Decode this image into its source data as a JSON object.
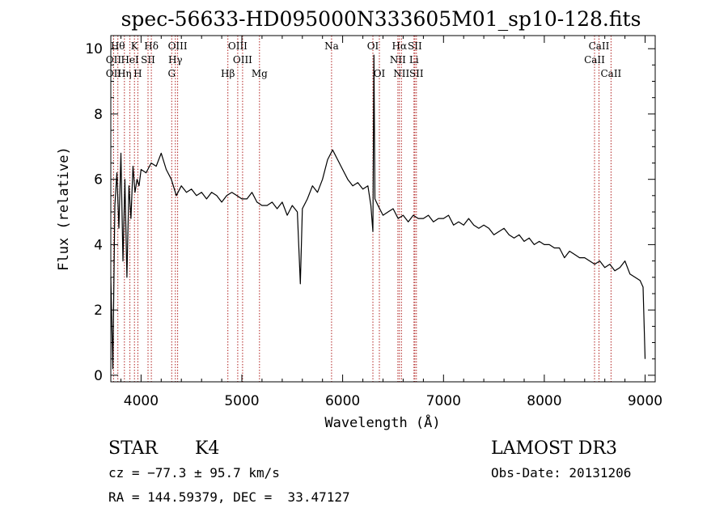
{
  "chart_data": {
    "type": "line",
    "title": "spec-56633-HD095000N333605M01_sp10-128.fits",
    "xlabel": "Wavelength (Å)",
    "ylabel": "Flux (relative)",
    "xlim": [
      3700,
      9100
    ],
    "ylim": [
      -0.2,
      10.4
    ],
    "x_ticks": [
      4000,
      5000,
      6000,
      7000,
      8000,
      9000
    ],
    "y_ticks": [
      0,
      2,
      4,
      6,
      8,
      10
    ],
    "grid": false,
    "series": [
      {
        "x": [
          3700,
          3720,
          3740,
          3760,
          3780,
          3800,
          3820,
          3840,
          3860,
          3880,
          3900,
          3920,
          3940,
          3960,
          3980,
          4000,
          4050,
          4100,
          4150,
          4200,
          4250,
          4300,
          4350,
          4400,
          4450,
          4500,
          4550,
          4600,
          4650,
          4700,
          4750,
          4800,
          4850,
          4900,
          4950,
          5000,
          5050,
          5100,
          5150,
          5200,
          5250,
          5300,
          5350,
          5400,
          5450,
          5500,
          5550,
          5580,
          5600,
          5650,
          5700,
          5750,
          5800,
          5850,
          5900,
          5950,
          6000,
          6050,
          6100,
          6150,
          6200,
          6250,
          6280,
          6300,
          6310,
          6320,
          6350,
          6400,
          6450,
          6500,
          6550,
          6600,
          6650,
          6700,
          6750,
          6800,
          6850,
          6900,
          6950,
          7000,
          7050,
          7100,
          7150,
          7200,
          7250,
          7300,
          7350,
          7400,
          7450,
          7500,
          7550,
          7600,
          7650,
          7700,
          7750,
          7800,
          7850,
          7900,
          7950,
          8000,
          8050,
          8100,
          8150,
          8200,
          8250,
          8300,
          8350,
          8400,
          8450,
          8500,
          8550,
          8600,
          8650,
          8700,
          8750,
          8800,
          8850,
          8900,
          8950,
          8980,
          9000
        ],
        "y": [
          3.0,
          0.2,
          5.2,
          6.2,
          4.5,
          6.8,
          3.5,
          6.0,
          3.0,
          5.8,
          4.8,
          6.4,
          5.6,
          6.0,
          5.8,
          6.3,
          6.2,
          6.5,
          6.4,
          6.8,
          6.3,
          6.0,
          5.5,
          5.8,
          5.6,
          5.7,
          5.5,
          5.6,
          5.4,
          5.6,
          5.5,
          5.3,
          5.5,
          5.6,
          5.5,
          5.4,
          5.4,
          5.6,
          5.3,
          5.2,
          5.2,
          5.3,
          5.1,
          5.3,
          4.9,
          5.2,
          5.0,
          2.8,
          5.1,
          5.4,
          5.8,
          5.6,
          6.0,
          6.6,
          6.9,
          6.6,
          6.3,
          6.0,
          5.8,
          5.9,
          5.7,
          5.8,
          5.2,
          4.4,
          9.8,
          5.4,
          5.2,
          4.9,
          5.0,
          5.1,
          4.8,
          4.9,
          4.7,
          4.9,
          4.8,
          4.8,
          4.9,
          4.7,
          4.8,
          4.8,
          4.9,
          4.6,
          4.7,
          4.6,
          4.8,
          4.6,
          4.5,
          4.6,
          4.5,
          4.3,
          4.4,
          4.5,
          4.3,
          4.2,
          4.3,
          4.1,
          4.2,
          4.0,
          4.1,
          4.0,
          4.0,
          3.9,
          3.9,
          3.6,
          3.8,
          3.7,
          3.6,
          3.6,
          3.5,
          3.4,
          3.5,
          3.3,
          3.4,
          3.2,
          3.3,
          3.5,
          3.1,
          3.0,
          2.9,
          2.7,
          0.5
        ]
      }
    ],
    "line_label_rows": [
      [
        {
          "wl": 3770,
          "label": "Hθ"
        },
        {
          "wl": 3934,
          "label": "K"
        },
        {
          "wl": 4102,
          "label": "Hδ"
        },
        {
          "wl": 4363,
          "label": "OIII"
        },
        {
          "wl": 4959,
          "label": "OIII"
        },
        {
          "wl": 5890,
          "label": "Na"
        },
        {
          "wl": 6300,
          "label": "OI"
        },
        {
          "wl": 6563,
          "label": "Hα"
        },
        {
          "wl": 6716,
          "label": "SII"
        },
        {
          "wl": 8542,
          "label": "CaII"
        }
      ],
      [
        {
          "wl": 3727,
          "label": "OII"
        },
        {
          "wl": 3889,
          "label": "HeI"
        },
        {
          "wl": 4069,
          "label": "SII"
        },
        {
          "wl": 4340,
          "label": "Hγ"
        },
        {
          "wl": 5007,
          "label": "OIII"
        },
        {
          "wl": 6548,
          "label": "NII"
        },
        {
          "wl": 6707,
          "label": "Li"
        },
        {
          "wl": 8498,
          "label": "CaII"
        }
      ],
      [
        {
          "wl": 3727,
          "label": "OII"
        },
        {
          "wl": 3835,
          "label": "Hη"
        },
        {
          "wl": 3968,
          "label": "H"
        },
        {
          "wl": 4304,
          "label": "G"
        },
        {
          "wl": 4861,
          "label": "Hβ"
        },
        {
          "wl": 5175,
          "label": "Mg"
        },
        {
          "wl": 6364,
          "label": "OI"
        },
        {
          "wl": 6583,
          "label": "NII"
        },
        {
          "wl": 6731,
          "label": "SII"
        },
        {
          "wl": 8662,
          "label": "CaII"
        }
      ]
    ],
    "marker_lines": [
      3727,
      3770,
      3835,
      3889,
      3934,
      3968,
      4069,
      4102,
      4304,
      4340,
      4363,
      4861,
      4959,
      5007,
      5175,
      5890,
      6300,
      6364,
      6548,
      6563,
      6583,
      6707,
      6716,
      6731,
      8498,
      8542,
      8662
    ],
    "marker_color": "#b0201e",
    "line_color": "#000000"
  },
  "info": {
    "obj_class": "STAR",
    "subclass": "K4",
    "survey": "LAMOST DR3",
    "cz": "cz = −77.3 ± 95.7 km/s",
    "obs_date": "Obs-Date: 20131206",
    "radec": "RA = 144.59379, DEC =  33.47127"
  }
}
